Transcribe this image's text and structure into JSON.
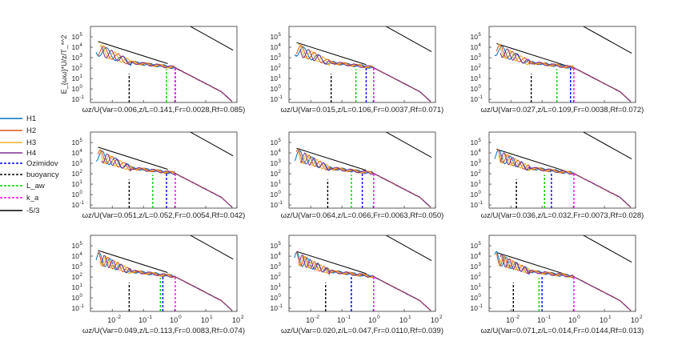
{
  "chart_data": {
    "type": "line",
    "layout": "3x3 grid of log-log spectra",
    "ylabel": "E_{ωω}*U/z/T_*^2",
    "xlabel_prefix": "ωz/U",
    "xscale": "log",
    "yscale": "log",
    "xlim": [
      0.002,
      100
    ],
    "ylim": [
      0.05,
      1000000
    ],
    "xticks": [
      {
        "v": 0.01,
        "base": "10",
        "exp": "-2"
      },
      {
        "v": 0.1,
        "base": "10",
        "exp": "-1"
      },
      {
        "v": 1,
        "base": "10",
        "exp": "0"
      },
      {
        "v": 10,
        "base": "10",
        "exp": "1"
      },
      {
        "v": 100,
        "base": "10",
        "exp": "2"
      }
    ],
    "yticks": [
      {
        "v": 0.1,
        "base": "10",
        "exp": "-1"
      },
      {
        "v": 1,
        "base": "10",
        "exp": "0"
      },
      {
        "v": 10,
        "base": "10",
        "exp": "1"
      },
      {
        "v": 100,
        "base": "10",
        "exp": "2"
      },
      {
        "v": 1000,
        "base": "10",
        "exp": "3"
      },
      {
        "v": 10000,
        "base": "10",
        "exp": "4"
      },
      {
        "v": 100000,
        "base": "10",
        "exp": "5"
      }
    ],
    "legend": [
      {
        "label": "H1",
        "color": "#0072bd",
        "dash": false
      },
      {
        "label": "H2",
        "color": "#d95319",
        "dash": false
      },
      {
        "label": "H3",
        "color": "#edb120",
        "dash": false
      },
      {
        "label": "H4",
        "color": "#7e2f8e",
        "dash": false
      },
      {
        "label": "Ozimidov",
        "color": "#0000ff",
        "dash": true
      },
      {
        "label": "buoyancy",
        "color": "#000000",
        "dash": true
      },
      {
        "label": "L_aw",
        "color": "#00cc00",
        "dash": true
      },
      {
        "label": "k_a",
        "color": "#ff00ff",
        "dash": true
      },
      {
        "label": "-5/3",
        "color": "#000000",
        "dash": false
      }
    ],
    "reference_slope": -1.6667,
    "panels": [
      {
        "title": "(Var=0.006,z/L=0.141,Fr=0.0028,Rf=0.085)",
        "buoyancy": 0.035,
        "law": 0.55,
        "ozmidov": 1.05,
        "ka": 1.05
      },
      {
        "title": "(Var=0.015,z/L=0.106,Fr=0.0037,Rf=0.071)",
        "buoyancy": 0.045,
        "law": 0.28,
        "ozmidov": 0.6,
        "ka": 1.05
      },
      {
        "title": "(Var=0.027,z/L=0.109,Fr=0.0038,Rf=0.072)",
        "buoyancy": 0.045,
        "law": 0.3,
        "ozmidov": 0.82,
        "ka": 1.05
      },
      {
        "title": "(Var=0.051,z/L=0.052,Fr=0.0054,Rf=0.042)",
        "buoyancy": 0.035,
        "law": 0.2,
        "ozmidov": 0.55,
        "ka": 1.05
      },
      {
        "title": "(Var=0.064,z/L=0.066,Fr=0.0063,Rf=0.050)",
        "buoyancy": 0.035,
        "law": 0.2,
        "ozmidov": 0.45,
        "ka": 1.05
      },
      {
        "title": "(Var=0.036,z/L=0.032,Fr=0.0073,Rf=0.028)",
        "buoyancy": 0.015,
        "law": 0.12,
        "ozmidov": 0.2,
        "ka": 1.05
      },
      {
        "title": "(Var=0.049,z/L=0.113,Fr=0.0083,Rf=0.074)",
        "buoyancy": 0.035,
        "law": 0.35,
        "ozmidov": 0.42,
        "ka": 1.05
      },
      {
        "title": "(Var=0.020,z/L=0.047,Fr=0.0110,Rf=0.039)",
        "buoyancy": 0.03,
        "law": 0.2,
        "ozmidov": 0.2,
        "ka": 1.05
      },
      {
        "title": "(Var=0.071,z/L=0.014,Fr=0.0144,Rf=0.013)",
        "buoyancy": 0.012,
        "law": 0.08,
        "ozmidov": 0.1,
        "ka": 1.05
      }
    ]
  }
}
